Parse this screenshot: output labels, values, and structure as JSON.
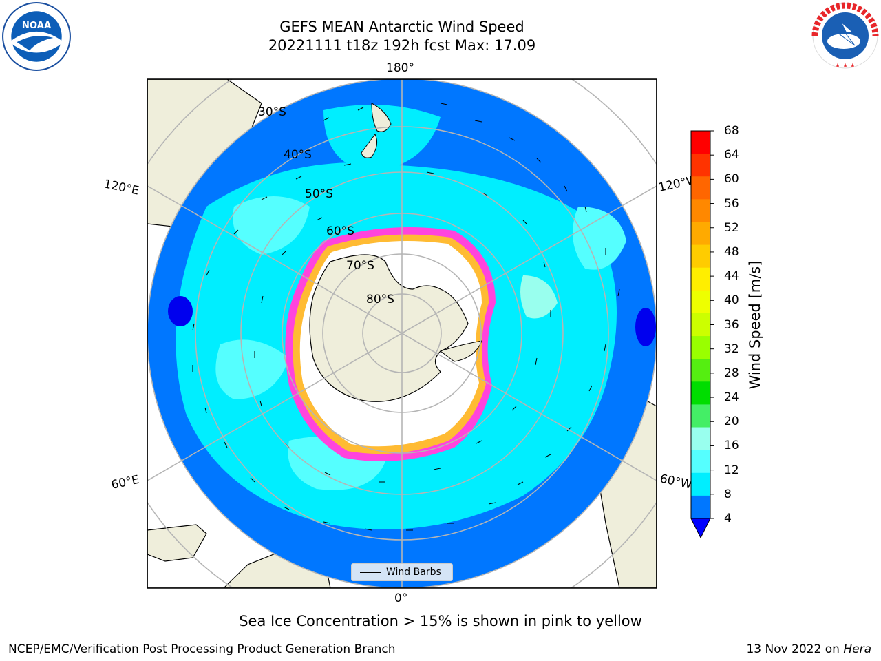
{
  "title_line1": "GEFS MEAN Antarctic Wind Speed",
  "title_line2": "20221111 t18z 192h fcst   Max: 17.09",
  "logos": {
    "left": "NOAA",
    "right": "NATIONAL WEATHER SERVICE"
  },
  "map": {
    "projection": "south-polar-stereographic",
    "longitude_labels": [
      "180°",
      "120°E",
      "120°W",
      "60°E",
      "60°W",
      "0°"
    ],
    "latitude_labels": [
      "30°S",
      "40°S",
      "50°S",
      "60°S",
      "70°S",
      "80°S"
    ],
    "legend_label": "Wind Barbs"
  },
  "colorbar": {
    "label": "Wind Speed [m/s]",
    "ticks": [
      "68",
      "64",
      "60",
      "56",
      "52",
      "48",
      "44",
      "40",
      "36",
      "32",
      "28",
      "24",
      "20",
      "16",
      "12",
      "8",
      "4"
    ],
    "colors": [
      "#ff0000",
      "#ff3300",
      "#ff6600",
      "#ff8800",
      "#ffaa00",
      "#ffcc00",
      "#ffee00",
      "#eeff00",
      "#ccff00",
      "#99ff00",
      "#55ee11",
      "#00dd00",
      "#44ee66",
      "#99ffee",
      "#55ffff",
      "#00eeff",
      "#0077ff"
    ],
    "under_color": "#0000ff"
  },
  "note": "Sea Ice Concentration > 15% is shown in pink to yellow",
  "footer": {
    "left": "NCEP/EMC/Verification Post Processing Product Generation Branch",
    "date": "13 Nov 2022 on",
    "host": "Hera"
  }
}
